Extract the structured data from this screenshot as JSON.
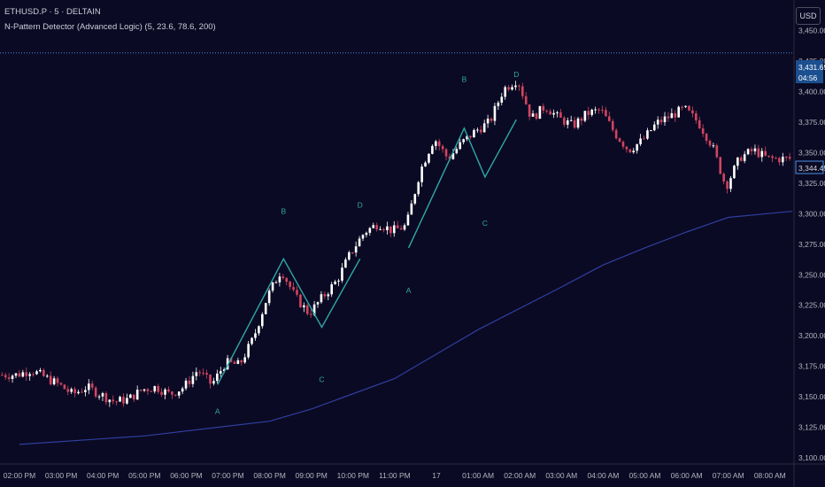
{
  "header": {
    "symbol": "ETHUSD.P · 5 · DELTAIN",
    "indicator": "N-Pattern Detector (Advanced Logic) (5, 23.6, 78.6, 200)",
    "currency_button": "USD"
  },
  "colors": {
    "background": "#0b0a24",
    "up_candle": "#ffffff",
    "down_candle": "#d2455f",
    "pattern": "#2fa9a6",
    "ma_line": "#2e3f9e",
    "price_line": "#4a90e2"
  },
  "price_tags": {
    "current": "3,431.65",
    "countdown": "04:56",
    "last": "3,344.45"
  },
  "chart_data": {
    "type": "candlestick",
    "ylim": [
      3095,
      3475
    ],
    "y_ticks": [
      "3,100.00",
      "3,125.00",
      "3,150.00",
      "3,175.00",
      "3,200.00",
      "3,225.00",
      "3,250.00",
      "3,275.00",
      "3,300.00",
      "3,325.00",
      "3,350.00",
      "3,375.00",
      "3,400.00",
      "3,425.00",
      "3,450.00"
    ],
    "x_ticks": [
      "02:00 PM",
      "03:00 PM",
      "04:00 PM",
      "05:00 PM",
      "06:00 PM",
      "07:00 PM",
      "08:00 PM",
      "09:00 PM",
      "10:00 PM",
      "11:00 PM",
      "17",
      "01:00 AM",
      "02:00 AM",
      "03:00 AM",
      "04:00 AM",
      "05:00 AM",
      "06:00 AM",
      "07:00 AM",
      "08:00 AM"
    ],
    "price_path": [
      [
        "02:00 PM",
        3168
      ],
      [
        "02:20 PM",
        3172
      ],
      [
        "02:40 PM",
        3166
      ],
      [
        "03:00 PM",
        3160
      ],
      [
        "03:20 PM",
        3152
      ],
      [
        "03:40 PM",
        3158
      ],
      [
        "04:00 PM",
        3152
      ],
      [
        "04:20 PM",
        3146
      ],
      [
        "04:40 PM",
        3148
      ],
      [
        "05:00 PM",
        3156
      ],
      [
        "05:20 PM",
        3158
      ],
      [
        "05:40 PM",
        3152
      ],
      [
        "06:00 PM",
        3158
      ],
      [
        "06:20 PM",
        3172
      ],
      [
        "06:40 PM",
        3160
      ],
      [
        "07:00 PM",
        3178
      ],
      [
        "07:20 PM",
        3176
      ],
      [
        "07:40 PM",
        3198
      ],
      [
        "08:00 PM",
        3232
      ],
      [
        "08:20 PM",
        3254
      ],
      [
        "08:40 PM",
        3232
      ],
      [
        "09:00 PM",
        3218
      ],
      [
        "09:20 PM",
        3232
      ],
      [
        "09:40 PM",
        3245
      ],
      [
        "10:00 PM",
        3268
      ],
      [
        "10:20 PM",
        3285
      ],
      [
        "10:40 PM",
        3292
      ],
      [
        "11:00 PM",
        3286
      ],
      [
        "11:20 PM",
        3290
      ],
      [
        "11:40 PM",
        3335
      ],
      [
        "12:00 AM",
        3362
      ],
      [
        "12:20 AM",
        3345
      ],
      [
        "12:40 AM",
        3358
      ],
      [
        "01:00 AM",
        3368
      ],
      [
        "01:20 AM",
        3375
      ],
      [
        "01:40 AM",
        3402
      ],
      [
        "02:00 AM",
        3410
      ],
      [
        "02:20 AM",
        3378
      ],
      [
        "02:40 AM",
        3388
      ],
      [
        "03:00 AM",
        3378
      ],
      [
        "03:20 AM",
        3372
      ],
      [
        "03:40 AM",
        3382
      ],
      [
        "04:00 AM",
        3385
      ],
      [
        "04:20 AM",
        3366
      ],
      [
        "04:40 AM",
        3352
      ],
      [
        "05:00 AM",
        3360
      ],
      [
        "05:20 AM",
        3374
      ],
      [
        "05:40 AM",
        3380
      ],
      [
        "06:00 AM",
        3386
      ],
      [
        "06:20 AM",
        3375
      ],
      [
        "06:40 AM",
        3356
      ],
      [
        "07:00 AM",
        3322
      ],
      [
        "07:20 AM",
        3346
      ],
      [
        "07:40 AM",
        3352
      ],
      [
        "08:00 AM",
        3345
      ]
    ],
    "ma_200": [
      [
        "02:00 PM",
        3111
      ],
      [
        "05:00 PM",
        3118
      ],
      [
        "08:00 PM",
        3130
      ],
      [
        "09:00 PM",
        3140
      ],
      [
        "11:00 PM",
        3165
      ],
      [
        "01:00 AM",
        3205
      ],
      [
        "03:00 AM",
        3240
      ],
      [
        "04:00 AM",
        3258
      ],
      [
        "05:00 AM",
        3272
      ],
      [
        "06:00 AM",
        3285
      ],
      [
        "07:00 AM",
        3297
      ],
      [
        "08:00 AM",
        3302
      ]
    ],
    "n_patterns": [
      {
        "points": [
          [
            "06:45 PM",
            3160
          ],
          [
            "08:20 PM",
            3263
          ],
          [
            "09:15 PM",
            3207
          ],
          [
            "10:10 PM",
            3263
          ]
        ],
        "labels": [
          {
            "text": "A",
            "time": "06:45 PM",
            "price": 3136
          },
          {
            "text": "B",
            "time": "08:20 PM",
            "price": 3300
          },
          {
            "text": "C",
            "time": "09:15 PM",
            "price": 3162
          },
          {
            "text": "D",
            "time": "10:10 PM",
            "price": 3305
          }
        ]
      },
      {
        "points": [
          [
            "11:20 PM",
            3272
          ],
          [
            "12:40 AM",
            3370
          ],
          [
            "01:10 AM",
            3330
          ],
          [
            "01:55 AM",
            3377
          ]
        ],
        "labels": [
          {
            "text": "A",
            "time": "11:20 PM",
            "price": 3235
          },
          {
            "text": "B",
            "time": "12:40 AM",
            "price": 3408
          },
          {
            "text": "C",
            "time": "01:10 AM",
            "price": 3290
          },
          {
            "text": "D",
            "time": "01:55 AM",
            "price": 3412
          }
        ]
      }
    ],
    "current_price": 3431.65,
    "last_price": 3344.45
  }
}
